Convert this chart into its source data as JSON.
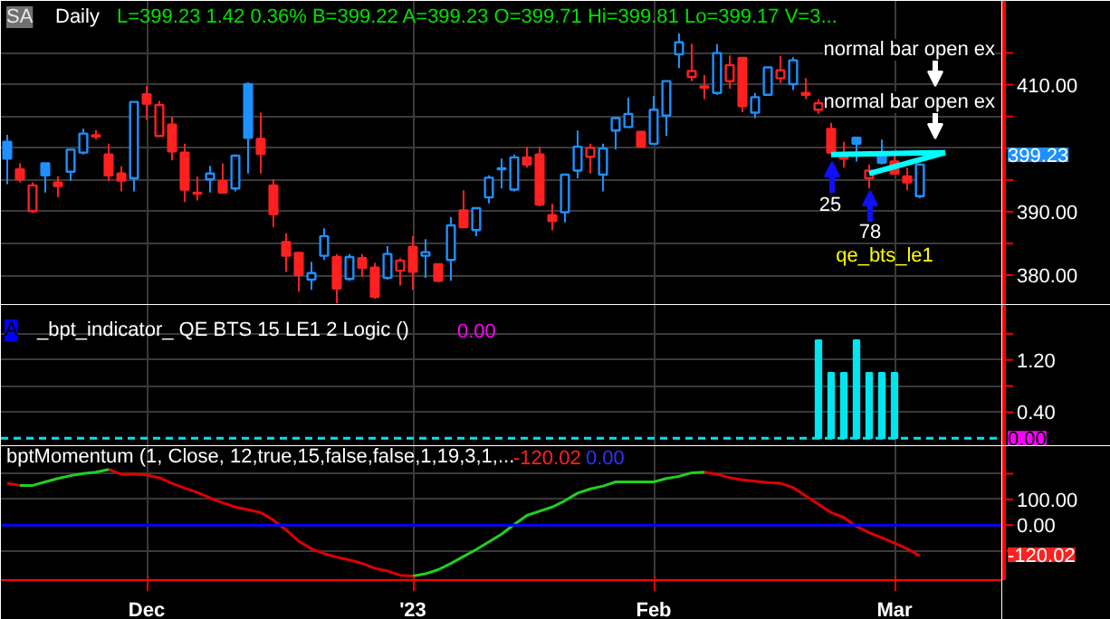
{
  "chart_data": [
    {
      "type": "candlestick",
      "title": "Daily",
      "subtitle": "L=399.23  1.42  0.36%  B=399.22  A=399.23  O=399.71  Hi=399.81  Lo=399.17  V=3...",
      "categories": [
        null,
        null,
        null,
        null,
        null,
        null,
        null,
        null,
        null,
        null,
        null,
        null,
        null,
        null,
        null,
        null,
        null,
        null,
        null,
        null,
        null,
        null,
        null,
        null,
        null,
        null,
        null,
        null,
        null,
        null,
        null,
        null,
        null,
        null,
        null,
        null,
        null,
        null,
        null,
        null,
        null,
        null,
        null,
        null,
        null,
        null,
        null,
        null,
        null,
        null,
        null,
        null,
        null,
        null,
        null,
        null,
        null,
        null,
        null,
        null,
        null,
        null,
        null,
        null,
        null,
        null,
        null,
        null,
        null,
        null,
        null,
        null,
        null,
        null,
        null,
        null,
        null,
        null,
        null
      ],
      "ohlc": [
        [
          400.99,
          402.11,
          394.32,
          398.36
        ],
        [
          396.67,
          397.61,
          394.6,
          395.07
        ],
        [
          390.09,
          394.6,
          389.81,
          394.13
        ],
        [
          397.61,
          397.61,
          393.0,
          395.73
        ],
        [
          394.6,
          395.54,
          392.25,
          394.04
        ],
        [
          396.29,
          399.77,
          394.88,
          399.77
        ],
        [
          399.3,
          403.05,
          399.01,
          402.3
        ],
        [
          402.02,
          402.86,
          401.36,
          401.83
        ],
        [
          399.01,
          400.7,
          394.79,
          395.73
        ],
        [
          396.01,
          397.14,
          393.19,
          394.88
        ],
        [
          395.26,
          407.28,
          393.19,
          407.28
        ],
        [
          408.5,
          409.81,
          404.46,
          407.0
        ],
        [
          401.92,
          407.46,
          401.92,
          406.81
        ],
        [
          403.71,
          404.93,
          398.08,
          399.48
        ],
        [
          399.3,
          400.7,
          391.5,
          393.47
        ],
        [
          393.0,
          395.54,
          391.78,
          392.82
        ],
        [
          395.07,
          397.23,
          393.0,
          396.01
        ],
        [
          394.79,
          397.61,
          393.0,
          393.0
        ],
        [
          393.66,
          398.83,
          393.19,
          398.83
        ],
        [
          410.09,
          410.38,
          396.01,
          401.64
        ],
        [
          401.46,
          405.59,
          396.01,
          399.11
        ],
        [
          394.13,
          395.07,
          387.56,
          389.62
        ],
        [
          385.21,
          386.62,
          380.52,
          383.05
        ],
        [
          383.52,
          383.52,
          377.42,
          380.05
        ],
        [
          379.3,
          382.11,
          377.7,
          380.33
        ],
        [
          383.05,
          387.37,
          382.39,
          386.15
        ],
        [
          382.86,
          383.33,
          375.54,
          377.89
        ],
        [
          379.39,
          383.33,
          379.11,
          382.86
        ],
        [
          382.68,
          383.33,
          379.77,
          381.17
        ],
        [
          381.17,
          381.92,
          376.29,
          376.57
        ],
        [
          379.58,
          384.55,
          379.3,
          383.33
        ],
        [
          380.7,
          382.68,
          378.36,
          382.3
        ],
        [
          384.46,
          386.15,
          377.7,
          380.52
        ],
        [
          383.05,
          385.68,
          379.58,
          383.62
        ],
        [
          381.74,
          381.74,
          378.92,
          379.11
        ],
        [
          382.39,
          389.15,
          379.11,
          387.84
        ],
        [
          390.19,
          393.38,
          387.56,
          387.56
        ],
        [
          387.09,
          390.56,
          386.15,
          390.56
        ],
        [
          392.25,
          395.73,
          391.31,
          395.35
        ],
        [
          396.67,
          398.36,
          393.66,
          396.85
        ],
        [
          393.47,
          399.01,
          393.19,
          398.55
        ],
        [
          398.55,
          400.23,
          396.95,
          397.42
        ],
        [
          399.01,
          400.23,
          390.85,
          391.13
        ],
        [
          389.44,
          391.22,
          387.09,
          388.5
        ],
        [
          389.91,
          395.82,
          388.31,
          395.82
        ],
        [
          396.48,
          402.77,
          395.26,
          400.23
        ],
        [
          398.64,
          400.7,
          396.01,
          400.05
        ],
        [
          395.82,
          400.7,
          393.19,
          399.95
        ],
        [
          402.77,
          404.93,
          399.77,
          404.74
        ],
        [
          403.33,
          407.93,
          403.33,
          405.4
        ],
        [
          402.58,
          402.58,
          400.23,
          400.23
        ],
        [
          400.7,
          408.22,
          400.52,
          406.06
        ],
        [
          405.12,
          410.56,
          401.92,
          410.56
        ],
        [
          414.79,
          418.08,
          412.63,
          416.67
        ],
        [
          411.22,
          416.48,
          410.56,
          412.16
        ],
        [
          409.72,
          411.5,
          407.75,
          409.53
        ],
        [
          408.69,
          416.38,
          408.4,
          414.98
        ],
        [
          410.56,
          414.6,
          409.34,
          413.1
        ],
        [
          414.23,
          414.23,
          405.68,
          406.62
        ],
        [
          405.59,
          408.69,
          404.74,
          408.03
        ],
        [
          408.4,
          412.72,
          408.22,
          412.72
        ],
        [
          411.03,
          414.51,
          410.28,
          412.25
        ],
        [
          410.09,
          414.32,
          409.15,
          413.85
        ],
        [
          408.69,
          411.03,
          407.75,
          408.4
        ],
        [
          406.06,
          407.75,
          405.4,
          407.09
        ],
        [
          403.05,
          403.99,
          399.11,
          399.3
        ],
        [
          399.11,
          400.99,
          396.95,
          398.36
        ],
        [
          401.64,
          401.64,
          397.89,
          400.7
        ],
        [
          395.26,
          397.42,
          393.66,
          396.48
        ],
        [
          399.3,
          401.36,
          397.42,
          397.7
        ],
        [
          397.89,
          399.3,
          396.01,
          396.01
        ],
        [
          395.54,
          396.95,
          393.38,
          394.6
        ],
        [
          392.44,
          397.42,
          392.07,
          397.42
        ],
        null,
        null,
        null,
        null,
        null,
        null
      ],
      "colors": [
        "#1e90ff",
        "#ff2020",
        "#ff2020",
        "#1e90ff",
        "#ff2020",
        "#1e90ff",
        "#1e90ff",
        "#ff2020",
        "#ff2020",
        "#ff2020",
        "#1e90ff",
        "#ff2020",
        "#ff2020",
        "#ff2020",
        "#ff2020",
        "#ff2020",
        "#1e90ff",
        "#ff2020",
        "#1e90ff",
        "#1e90ff",
        "#ff2020",
        "#ff2020",
        "#ff2020",
        "#ff2020",
        "#1e90ff",
        "#1e90ff",
        "#ff2020",
        "#1e90ff",
        "#ff2020",
        "#ff2020",
        "#1e90ff",
        "#ff2020",
        "#ff2020",
        "#1e90ff",
        "#ff2020",
        "#1e90ff",
        "#ff2020",
        "#1e90ff",
        "#1e90ff",
        "#1e90ff",
        "#1e90ff",
        "#ff2020",
        "#ff2020",
        "#ff2020",
        "#1e90ff",
        "#1e90ff",
        "#ff2020",
        "#1e90ff",
        "#1e90ff",
        "#1e90ff",
        "#ff2020",
        "#1e90ff",
        "#1e90ff",
        "#1e90ff",
        "#ff2020",
        "#ff2020",
        "#1e90ff",
        "#ff2020",
        "#ff2020",
        "#1e90ff",
        "#1e90ff",
        "#ff2020",
        "#1e90ff",
        "#ff2020",
        "#ff2020",
        "#ff2020",
        "#ff2020",
        "#1e90ff",
        "#ff2020",
        "#1e90ff",
        "#ff2020",
        "#ff2020",
        "#1e90ff",
        null,
        null,
        null,
        null,
        null,
        null
      ],
      "series": [
        {
          "type": "line",
          "color": "#00ffff",
          "values": [
            null,
            null,
            null,
            null,
            null,
            null,
            null,
            null,
            null,
            null,
            null,
            null,
            null,
            null,
            null,
            null,
            null,
            null,
            null,
            null,
            null,
            null,
            null,
            null,
            null,
            null,
            null,
            null,
            null,
            null,
            null,
            null,
            null,
            null,
            null,
            null,
            null,
            null,
            null,
            null,
            null,
            null,
            null,
            null,
            null,
            null,
            null,
            null,
            null,
            null,
            null,
            null,
            null,
            null,
            null,
            null,
            null,
            null,
            null,
            null,
            null,
            null,
            null,
            null,
            null,
            399.0,
            null,
            null,
            null,
            null,
            null,
            null,
            null,
            null,
            399.3,
            null,
            null,
            null,
            null
          ]
        },
        {
          "type": "line",
          "color": "#00ffff",
          "values": [
            null,
            null,
            null,
            null,
            null,
            null,
            null,
            null,
            null,
            null,
            null,
            null,
            null,
            null,
            null,
            null,
            null,
            null,
            null,
            null,
            null,
            null,
            null,
            null,
            null,
            null,
            null,
            null,
            null,
            null,
            null,
            null,
            null,
            null,
            null,
            null,
            null,
            null,
            null,
            null,
            null,
            null,
            null,
            null,
            null,
            null,
            null,
            null,
            null,
            null,
            null,
            null,
            null,
            null,
            null,
            null,
            null,
            null,
            null,
            null,
            null,
            null,
            null,
            null,
            null,
            null,
            null,
            null,
            396.0,
            null,
            null,
            null,
            null,
            null,
            399.3,
            null,
            null,
            null,
            null
          ]
        }
      ],
      "ylim": [
        375.3,
        423.2
      ],
      "yticks": [
        {
          "value": 380,
          "label": "380.00"
        },
        {
          "value": 385,
          "label": null
        },
        {
          "value": 390,
          "label": "390.00"
        },
        {
          "value": 395,
          "label": null
        },
        {
          "value": 400,
          "label": null
        },
        {
          "value": 405,
          "label": null
        },
        {
          "value": 410,
          "label": "410.00"
        },
        {
          "value": 415,
          "label": null
        }
      ],
      "grid": true,
      "tick_labels": "y",
      "annotations": [
        "SA",
        "normal bar open ex",
        "normal bar open ex",
        "25",
        "78",
        "qe_bts_le1",
        "399.23"
      ]
    },
    {
      "type": "bar",
      "title": "_bpt_indicator_ QE BTS 15 LE1 2 Logic ()",
      "categories": [
        null,
        null,
        null,
        null,
        null,
        null,
        null,
        null,
        null,
        null,
        null,
        null,
        null,
        null,
        null,
        null,
        null,
        null,
        null,
        null,
        null,
        null,
        null,
        null,
        null,
        null,
        null,
        null,
        null,
        null,
        null,
        null,
        null,
        null,
        null,
        null,
        null,
        null,
        null,
        null,
        null,
        null,
        null,
        null,
        null,
        null,
        null,
        null,
        null,
        null,
        null,
        null,
        null,
        null,
        null,
        null,
        null,
        null,
        null,
        null,
        null,
        null,
        null,
        null,
        null,
        null,
        null,
        null,
        null,
        null,
        null,
        null,
        null,
        null,
        null,
        null,
        null,
        null,
        null
      ],
      "values": [
        null,
        null,
        null,
        null,
        null,
        null,
        null,
        null,
        null,
        null,
        null,
        null,
        null,
        null,
        null,
        null,
        null,
        null,
        null,
        null,
        null,
        null,
        null,
        null,
        null,
        null,
        null,
        null,
        null,
        null,
        null,
        null,
        null,
        null,
        null,
        null,
        null,
        null,
        null,
        null,
        null,
        null,
        null,
        null,
        null,
        null,
        null,
        null,
        null,
        null,
        null,
        null,
        null,
        null,
        null,
        null,
        null,
        null,
        null,
        null,
        null,
        null,
        null,
        null,
        1.5,
        1.0,
        1.0,
        1.5,
        1.0,
        1.0,
        1.0,
        null,
        null,
        null,
        null,
        null,
        null,
        null,
        null
      ],
      "color": "#00e5ee",
      "ylim": [
        -0.12,
        2.04
      ],
      "yticks": [
        {
          "value": 0.4,
          "label": "0.40"
        },
        {
          "value": 0.8,
          "label": null
        },
        {
          "value": 1.2,
          "label": "1.20"
        },
        {
          "value": 1.6,
          "label": null
        }
      ],
      "grid": true,
      "tick_labels": "y",
      "ref_lines": [
        {
          "axis": "y",
          "value": 0,
          "label": "0.00",
          "color": "#00e5ee",
          "line_style": "dashed"
        }
      ],
      "annotations": [
        "A",
        "0.00"
      ]
    },
    {
      "type": "line",
      "title": "bptMomentum (1, Close, 12,true,15,false,false,1,19,3,1,...",
      "categories": [
        null,
        null,
        null,
        null,
        null,
        null,
        null,
        null,
        null,
        null,
        null,
        "Dec",
        null,
        null,
        null,
        null,
        null,
        null,
        null,
        null,
        null,
        null,
        null,
        null,
        null,
        null,
        null,
        null,
        null,
        null,
        null,
        null,
        "'23",
        null,
        null,
        null,
        null,
        null,
        null,
        null,
        null,
        null,
        null,
        null,
        null,
        null,
        null,
        null,
        null,
        null,
        null,
        "Feb",
        null,
        null,
        null,
        null,
        null,
        null,
        null,
        null,
        null,
        null,
        null,
        null,
        null,
        null,
        null,
        null,
        null,
        null,
        "Mar",
        null,
        null,
        null,
        null,
        null,
        null,
        null,
        null
      ],
      "series": [
        {
          "color": "#e00000",
          "values": [
            162.4,
            154.3,
            null,
            null,
            null,
            null,
            null,
            null,
            216.6,
            197.6,
            197.6,
            194.9,
            184.1,
            162.4,
            143.5,
            127.2,
            105.5,
            86.6,
            70.3,
            59.5,
            48.7,
            18.9,
            -19.1,
            -62.4,
            -92.2,
            -111.2,
            -124.7,
            -135.6,
            -149.1,
            -168.1,
            -178.9,
            -195.2,
            -197.9,
            null,
            null,
            null,
            null,
            null,
            null,
            null,
            null,
            null,
            null,
            null,
            null,
            null,
            null,
            null,
            null,
            null,
            null,
            null,
            null,
            null,
            null,
            205.8,
            197.6,
            184.1,
            176.0,
            170.6,
            165.1,
            162.4,
            146.2,
            113.7,
            81.2,
            48.7,
            29.7,
            -5.5,
            -29.9,
            -48.9,
            -70.5,
            -92.2,
            -120.02,
            null,
            null,
            null,
            null,
            null,
            null
          ]
        },
        {
          "color": "#20d020",
          "values": [
            null,
            154.3,
            154.3,
            167.8,
            181.4,
            192.2,
            200.4,
            205.8,
            216.6,
            null,
            null,
            null,
            null,
            null,
            null,
            null,
            null,
            null,
            null,
            null,
            null,
            null,
            null,
            null,
            null,
            null,
            null,
            null,
            null,
            null,
            null,
            null,
            -197.9,
            -189.7,
            -173.5,
            -149.1,
            -122.0,
            -95.0,
            -65.1,
            -35.3,
            2.6,
            37.8,
            54.1,
            70.3,
            94.7,
            124.5,
            140.8,
            151.6,
            167.8,
            167.8,
            167.8,
            167.8,
            181.4,
            189.5,
            203.1,
            205.8,
            null,
            null,
            null,
            null,
            null,
            null,
            null,
            null,
            null,
            null,
            null,
            null,
            null,
            null,
            null,
            null,
            null,
            null,
            null,
            null,
            null,
            null,
            null
          ]
        }
      ],
      "ylim": [
        -214,
        307
      ],
      "yticks": [
        {
          "value": -100,
          "label": null
        },
        {
          "value": 0,
          "label": "0.00"
        },
        {
          "value": 100,
          "label": "100.00"
        },
        {
          "value": 200,
          "label": null
        }
      ],
      "grid": true,
      "ref_lines": [
        {
          "axis": "y",
          "value": 0,
          "color": "#0000ff"
        }
      ],
      "annotations": [
        "-120.02",
        "0.00",
        "-120.02"
      ]
    }
  ]
}
